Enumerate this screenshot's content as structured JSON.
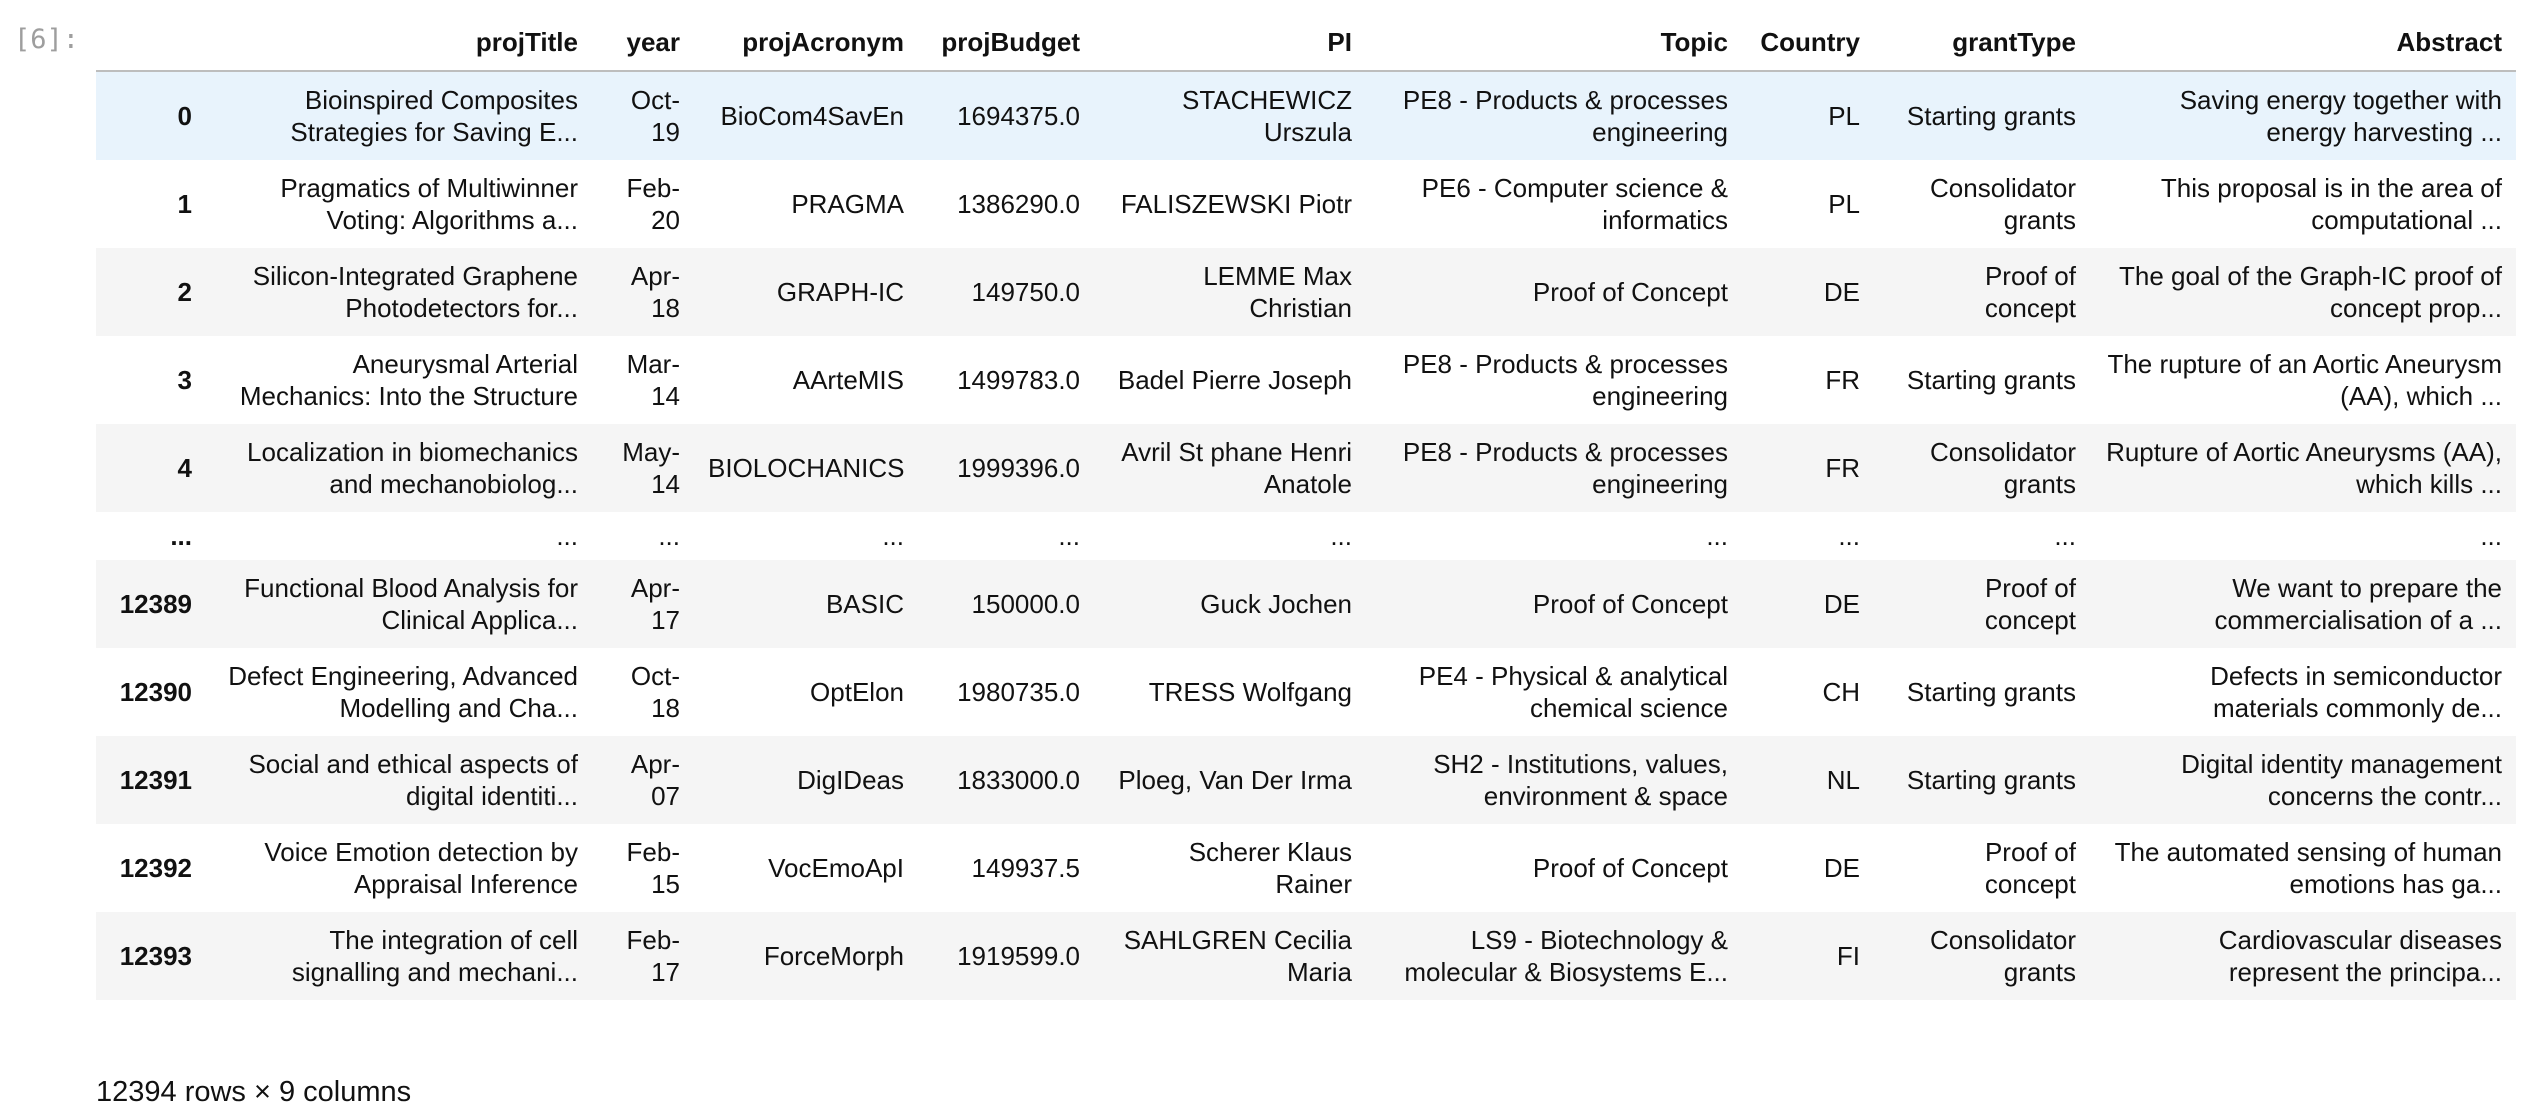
{
  "cell": {
    "prompt": "[6]:"
  },
  "table": {
    "columns": [
      "",
      "projTitle",
      "year",
      "projAcronym",
      "projBudget",
      "PI",
      "Topic",
      "Country",
      "grantType",
      "Abstract"
    ],
    "rows": [
      {
        "index": "0",
        "projTitle": "Bioinspired Composites Strategies for Saving E...",
        "year": "Oct-19",
        "projAcronym": "BioCom4SavEn",
        "projBudget": "1694375.0",
        "PI": "STACHEWICZ Urszula",
        "Topic": "PE8 - Products & processes engineering",
        "Country": "PL",
        "grantType": "Starting grants",
        "Abstract": "Saving energy together with energy harvesting ..."
      },
      {
        "index": "1",
        "projTitle": "Pragmatics of Multiwinner Voting: Algorithms a...",
        "year": "Feb-20",
        "projAcronym": "PRAGMA",
        "projBudget": "1386290.0",
        "PI": "FALISZEWSKI Piotr",
        "Topic": "PE6 - Computer science & informatics",
        "Country": "PL",
        "grantType": "Consolidator grants",
        "Abstract": "This proposal is in the area of computational ..."
      },
      {
        "index": "2",
        "projTitle": "Silicon-Integrated Graphene Photodetectors for...",
        "year": "Apr-18",
        "projAcronym": "GRAPH-IC",
        "projBudget": "149750.0",
        "PI": "LEMME Max Christian",
        "Topic": "Proof of Concept",
        "Country": "DE",
        "grantType": "Proof of concept",
        "Abstract": "The goal of the Graph-IC proof of concept prop..."
      },
      {
        "index": "3",
        "projTitle": "Aneurysmal Arterial Mechanics: Into the Structure",
        "year": "Mar-14",
        "projAcronym": "AArteMIS",
        "projBudget": "1499783.0",
        "PI": "Badel Pierre Joseph",
        "Topic": "PE8 - Products & processes engineering",
        "Country": "FR",
        "grantType": "Starting grants",
        "Abstract": "The rupture of an Aortic Aneurysm (AA), which ..."
      },
      {
        "index": "4",
        "projTitle": "Localization in biomechanics and mechanobiolog...",
        "year": "May-14",
        "projAcronym": "BIOLOCHANICS",
        "projBudget": "1999396.0",
        "PI": "Avril St   phane Henri Anatole",
        "Topic": "PE8 - Products & processes engineering",
        "Country": "FR",
        "grantType": "Consolidator grants",
        "Abstract": "Rupture of Aortic Aneurysms (AA), which kills ..."
      },
      {
        "index": "...",
        "projTitle": "...",
        "year": "...",
        "projAcronym": "...",
        "projBudget": "...",
        "PI": "...",
        "Topic": "...",
        "Country": "...",
        "grantType": "...",
        "Abstract": "..."
      },
      {
        "index": "12389",
        "projTitle": "Functional Blood Analysis for Clinical Applica...",
        "year": "Apr-17",
        "projAcronym": "BASIC",
        "projBudget": "150000.0",
        "PI": "Guck Jochen",
        "Topic": "Proof of Concept",
        "Country": "DE",
        "grantType": "Proof of concept",
        "Abstract": "We want to prepare the commercialisation of a ..."
      },
      {
        "index": "12390",
        "projTitle": "Defect Engineering, Advanced Modelling and Cha...",
        "year": "Oct-18",
        "projAcronym": "OptElon",
        "projBudget": "1980735.0",
        "PI": "TRESS Wolfgang",
        "Topic": "PE4 - Physical & analytical chemical science",
        "Country": "CH",
        "grantType": "Starting grants",
        "Abstract": "Defects in semiconductor materials commonly de..."
      },
      {
        "index": "12391",
        "projTitle": "Social and ethical aspects of digital identiti...",
        "year": "Apr-07",
        "projAcronym": "DigIDeas",
        "projBudget": "1833000.0",
        "PI": "Ploeg, Van Der Irma",
        "Topic": "SH2 - Institutions, values, environment & space",
        "Country": "NL",
        "grantType": "Starting grants",
        "Abstract": "Digital identity management concerns the contr..."
      },
      {
        "index": "12392",
        "projTitle": "Voice Emotion detection by Appraisal Inference",
        "year": "Feb-15",
        "projAcronym": "VocEmoApI",
        "projBudget": "149937.5",
        "PI": "Scherer Klaus Rainer",
        "Topic": "Proof of Concept",
        "Country": "DE",
        "grantType": "Proof of concept",
        "Abstract": "The automated sensing of human emotions has ga..."
      },
      {
        "index": "12393",
        "projTitle": "The integration of cell signalling and mechani...",
        "year": "Feb-17",
        "projAcronym": "ForceMorph",
        "projBudget": "1919599.0",
        "PI": "SAHLGREN Cecilia Maria",
        "Topic": "LS9 - Biotechnology & molecular & Biosystems E...",
        "Country": "FI",
        "grantType": "Consolidator grants",
        "Abstract": "Cardiovascular diseases represent the principa..."
      }
    ]
  },
  "footer": {
    "summary": "12394 rows × 9 columns"
  },
  "colors": {
    "header_border": "#bdbdbd",
    "stripe": "#f5f5f5",
    "hover_row": "#e8f3fc",
    "prompt": "#9e9e9e"
  }
}
